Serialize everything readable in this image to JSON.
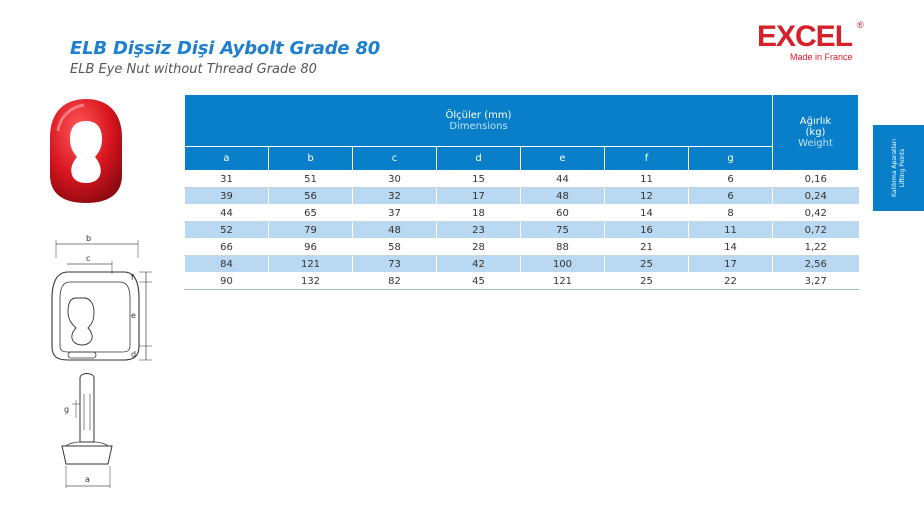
{
  "header": {
    "title": "ELB Dişsiz Dişi Aybolt Grade 80",
    "subtitle": "ELB Eye Nut without Thread Grade 80"
  },
  "logo": {
    "word": "EXCEL",
    "registered": "®",
    "tagline": "Made in France",
    "color": "#d6202a"
  },
  "side_tab": {
    "line1": "Kaldırma Aparatları",
    "line2": "Lifting Points",
    "color": "#0a7fc9"
  },
  "table": {
    "dimensions_label_tr": "Ölçüler (mm)",
    "dimensions_label_en": "Dimensions",
    "weight_label_tr1": "Ağırlık",
    "weight_label_tr2": "(kg)",
    "weight_label_en": "Weight",
    "columns": [
      "a",
      "b",
      "c",
      "d",
      "e",
      "f",
      "g"
    ],
    "rows": [
      [
        "31",
        "51",
        "30",
        "15",
        "44",
        "11",
        "6",
        "0,16"
      ],
      [
        "39",
        "56",
        "32",
        "17",
        "48",
        "12",
        "6",
        "0,24"
      ],
      [
        "44",
        "65",
        "37",
        "18",
        "60",
        "14",
        "8",
        "0,42"
      ],
      [
        "52",
        "79",
        "48",
        "23",
        "75",
        "16",
        "11",
        "0,72"
      ],
      [
        "66",
        "96",
        "58",
        "28",
        "88",
        "21",
        "14",
        "1,22"
      ],
      [
        "84",
        "121",
        "73",
        "42",
        "100",
        "25",
        "17",
        "2,56"
      ],
      [
        "90",
        "132",
        "82",
        "45",
        "121",
        "25",
        "22",
        "3,27"
      ]
    ]
  },
  "drawing_labels": {
    "b": "b",
    "c": "c",
    "f": "f",
    "e": "e",
    "d": "d",
    "g": "g",
    "a": "a"
  },
  "colors": {
    "title": "#1f7fcf",
    "header_bg": "#0a7fc9",
    "row_alt": "#b9d8f1",
    "product_red": "#d8141f"
  }
}
